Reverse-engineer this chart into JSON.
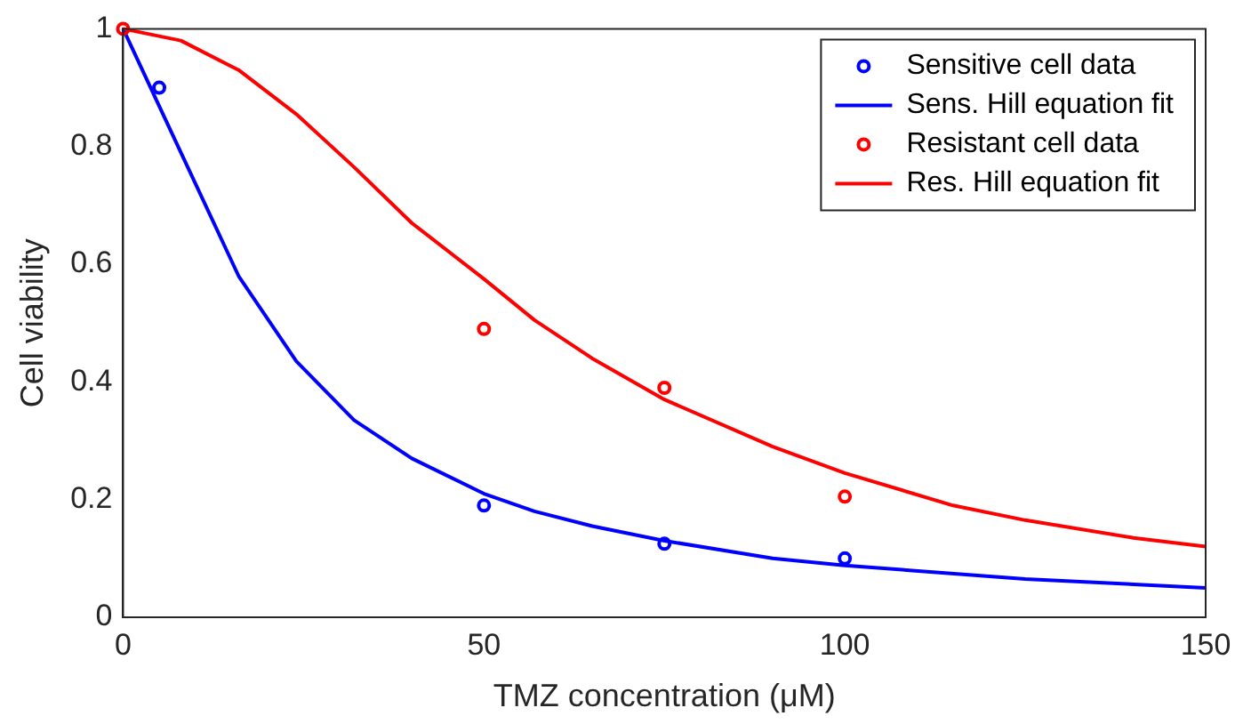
{
  "chart_data": {
    "type": "scatter",
    "xlabel": "TMZ concentration (μM)",
    "ylabel": "Cell viability",
    "xlim": [
      0,
      150
    ],
    "xticks": [
      0,
      50,
      100,
      150
    ],
    "ylim": [
      0,
      1
    ],
    "yticks": [
      0,
      0.2,
      0.4,
      0.6,
      0.8,
      1
    ],
    "grid": false,
    "legend": "top right",
    "series": [
      {
        "name": "Sensitive cell data",
        "marker": "circle",
        "color": "#0000ff",
        "x": [
          5,
          50,
          75,
          100
        ],
        "values": [
          0.9,
          0.19,
          0.125,
          0.1
        ]
      },
      {
        "name": "Sens. Hill equation fit",
        "type": "line",
        "marker": "none",
        "color": "#0000ff",
        "x": [
          0,
          8,
          16,
          24,
          32,
          40,
          50,
          57,
          65,
          75,
          90,
          100,
          125,
          150
        ],
        "values": [
          1,
          0.79,
          0.58,
          0.435,
          0.335,
          0.27,
          0.21,
          0.18,
          0.155,
          0.13,
          0.1,
          0.088,
          0.065,
          0.05
        ]
      },
      {
        "name": "Resistant cell data",
        "marker": "circle",
        "color": "#ff0000",
        "x": [
          0,
          50,
          75,
          100
        ],
        "values": [
          1,
          0.49,
          0.39,
          0.205
        ]
      },
      {
        "name": "Res. Hill equation fit",
        "type": "line",
        "marker": "none",
        "color": "#ff0000",
        "x": [
          0,
          8,
          16,
          24,
          32,
          40,
          50,
          57,
          65,
          75,
          90,
          100,
          115,
          125,
          140,
          150
        ],
        "values": [
          1,
          0.98,
          0.93,
          0.855,
          0.765,
          0.67,
          0.575,
          0.505,
          0.44,
          0.37,
          0.29,
          0.245,
          0.19,
          0.165,
          0.135,
          0.12
        ]
      }
    ]
  }
}
